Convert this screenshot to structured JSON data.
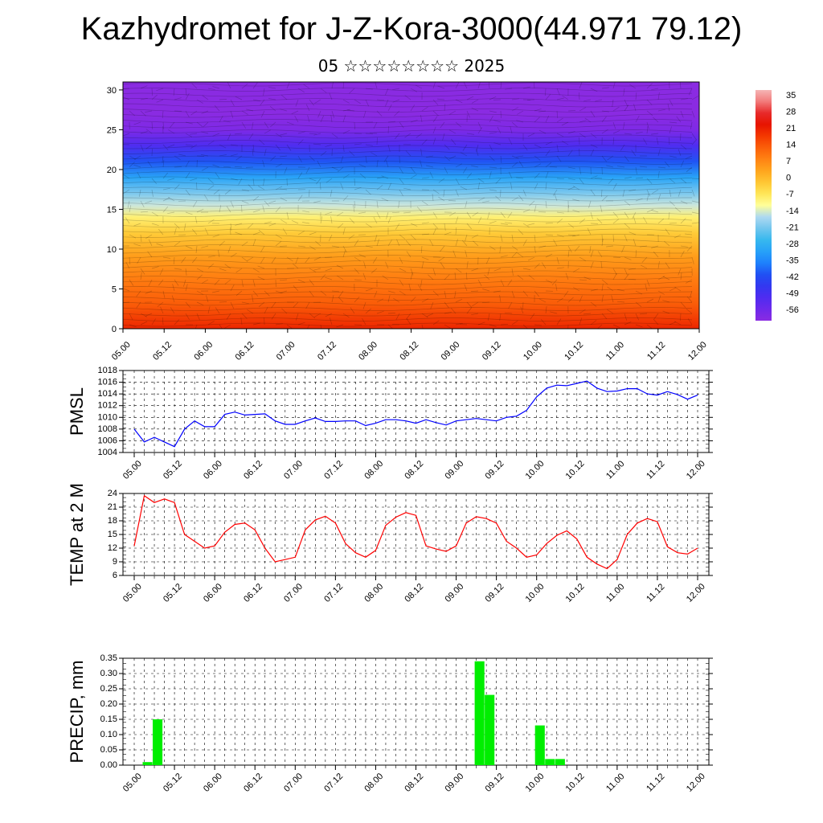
{
  "header": {
    "title": "Kazhydromet for J-Z-Kora-3000(44.971 79.12)",
    "subtitle": "05 ☆☆☆☆☆☆☆☆ 2025"
  },
  "colors": {
    "pmsl_line": "#0000ff",
    "temp_line": "#ff0000",
    "precip_bar": "#00ee00"
  },
  "chart_data": [
    {
      "type": "heatmap",
      "title": "",
      "xlabel": "",
      "ylabel": "",
      "x_ticks": [
        "05.00",
        "05.12",
        "06.00",
        "06.12",
        "07.00",
        "07.12",
        "08.00",
        "08.12",
        "09.00",
        "09.12",
        "10.00",
        "10.12",
        "11.00",
        "11.12",
        "12.00"
      ],
      "y_ticks": [
        0,
        5,
        10,
        15,
        20,
        25,
        30
      ],
      "ylim": [
        0,
        31
      ],
      "colorbar": {
        "labels": [
          35,
          28,
          21,
          14,
          7,
          0,
          -7,
          -14,
          -21,
          -28,
          -35,
          -42,
          -49,
          -56
        ],
        "range": [
          -60,
          38
        ]
      },
      "temperature_profile": {
        "heights": [
          0,
          3,
          6,
          9,
          12,
          14,
          15.5,
          17,
          19,
          21,
          23,
          25,
          27,
          29,
          31
        ],
        "values": [
          21,
          14,
          10,
          5,
          -2,
          -8,
          -14,
          -20,
          -30,
          -40,
          -50,
          -58,
          -62,
          -63,
          -64
        ]
      },
      "overlay": "wind barbs"
    },
    {
      "type": "line",
      "ylabel": "PMSL",
      "ylim": [
        1004,
        1018
      ],
      "y_ticks": [
        1004,
        1006,
        1008,
        1010,
        1012,
        1014,
        1016,
        1018
      ],
      "x_ticks": [
        "05.00",
        "05.12",
        "06.00",
        "06.12",
        "07.00",
        "07.12",
        "08.00",
        "08.12",
        "09.00",
        "09.12",
        "10.00",
        "10.12",
        "11.00",
        "11.12",
        "12.00"
      ],
      "grid": true,
      "series": [
        {
          "values": [
            1008,
            1005.8,
            1006.6,
            1005.8,
            1005,
            1008,
            1009.4,
            1008.4,
            1008.4,
            1010.5,
            1010.9,
            1010.4,
            1010.5,
            1010.6,
            1009.4,
            1008.8,
            1008.8,
            1009.4,
            1009.9,
            1009.3,
            1009.3,
            1009.4,
            1009.4,
            1008.6,
            1009,
            1009.6,
            1009.6,
            1009.4,
            1009,
            1009.6,
            1009.1,
            1008.7,
            1009.4,
            1009.6,
            1009.8,
            1009.6,
            1009.4,
            1010,
            1010.2,
            1011.2,
            1013.5,
            1015,
            1015.5,
            1015.4,
            1015.8,
            1016.2,
            1015,
            1014.4,
            1014.5,
            1014.9,
            1014.9,
            1014,
            1013.8,
            1014.4,
            1013.9,
            1013.1,
            1013.8
          ]
        }
      ]
    },
    {
      "type": "line",
      "ylabel": "TEMP at 2 M",
      "ylim": [
        6,
        24
      ],
      "y_ticks": [
        6,
        9,
        12,
        15,
        18,
        21,
        24
      ],
      "x_ticks": [
        "05.00",
        "05.12",
        "06.00",
        "06.12",
        "07.00",
        "07.12",
        "08.00",
        "08.12",
        "09.00",
        "09.12",
        "10.00",
        "10.12",
        "11.00",
        "11.12",
        "12.00"
      ],
      "grid": true,
      "series": [
        {
          "values": [
            12.5,
            23.5,
            22,
            22.8,
            22,
            15,
            13.5,
            12,
            12.5,
            15.5,
            17.2,
            17.5,
            16,
            12,
            9,
            9.5,
            10,
            16,
            18.2,
            19,
            17.5,
            13,
            11,
            10,
            11.5,
            17,
            18.8,
            19.8,
            19.2,
            12.5,
            11.8,
            11.3,
            12.5,
            17.5,
            18.9,
            18.5,
            17.5,
            13.5,
            12,
            10,
            10.5,
            13,
            14.8,
            15.8,
            14,
            10,
            8.5,
            7.5,
            9.5,
            15,
            17.5,
            18.5,
            17.8,
            12.3,
            11,
            10.7,
            12
          ]
        }
      ]
    },
    {
      "type": "bar",
      "ylabel": "PRECIP, mm",
      "ylim": [
        0,
        0.35
      ],
      "y_ticks": [
        "0.00",
        "0.05",
        "0.10",
        "0.15",
        "0.20",
        "0.25",
        "0.30",
        "0.35"
      ],
      "x_ticks": [
        "05.00",
        "05.12",
        "06.00",
        "06.12",
        "07.00",
        "07.12",
        "08.00",
        "08.12",
        "09.00",
        "09.12",
        "10.00",
        "10.12",
        "11.00",
        "11.12",
        "12.00"
      ],
      "grid": true,
      "bars": [
        {
          "time": "05.03",
          "value": 0.01
        },
        {
          "time": "05.06",
          "value": 0.15
        },
        {
          "time": "09.06",
          "value": 0.34
        },
        {
          "time": "09.09",
          "value": 0.23
        },
        {
          "time": "10.00",
          "value": 0.13
        },
        {
          "time": "10.03",
          "value": 0.02
        },
        {
          "time": "10.06",
          "value": 0.02
        }
      ]
    }
  ]
}
